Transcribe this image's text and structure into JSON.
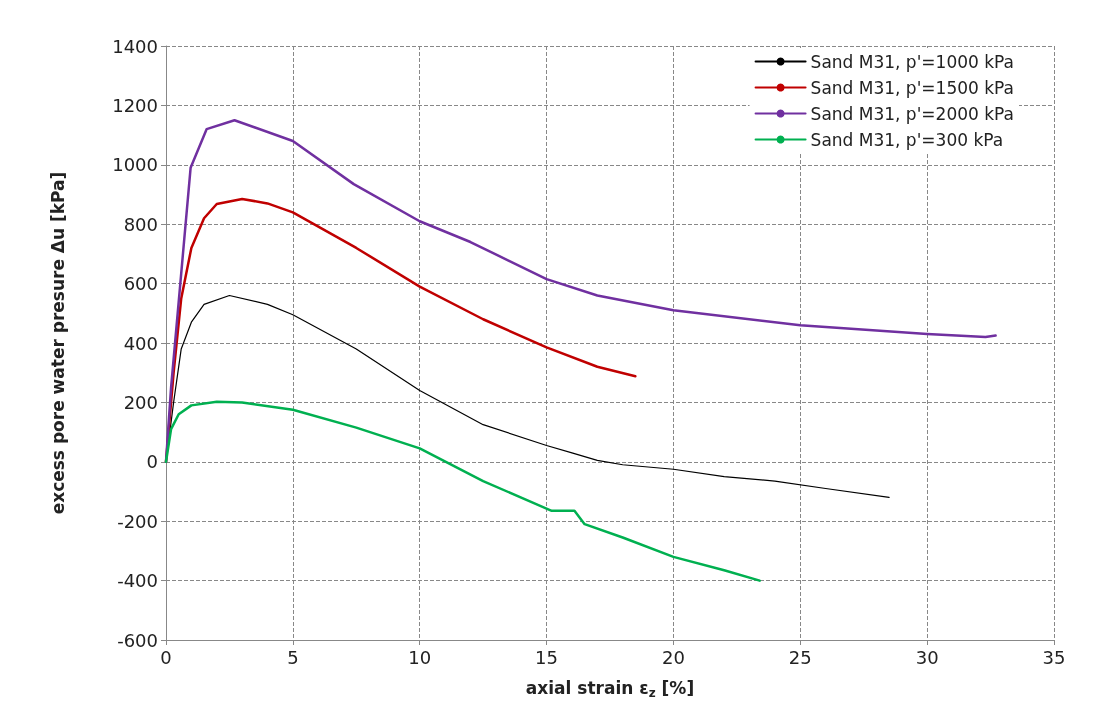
{
  "chart_data": {
    "type": "line",
    "xlabel": "axial strain ε$_{z}$ [%]",
    "ylabel": "excess pore water presure Δu [kPa]",
    "xlim": [
      0,
      35
    ],
    "xticks": [
      0,
      5,
      10,
      15,
      20,
      25,
      30,
      35
    ],
    "ylim": [
      -600,
      1400
    ],
    "yticks": [
      -600,
      -400,
      -200,
      0,
      200,
      400,
      600,
      800,
      1000,
      1200,
      1400
    ],
    "grid": true,
    "legend": "top right",
    "marker": "none",
    "line_style": "solid",
    "series": [
      {
        "name": "Sand M31, p'=1000 kPa",
        "color": "#000000",
        "x": [
          0,
          0.3,
          0.6,
          1,
          1.5,
          2.5,
          4,
          5,
          7.5,
          10,
          12.5,
          15,
          16,
          17,
          18,
          20,
          22,
          24,
          26,
          28.5
        ],
        "values": [
          0,
          200,
          380,
          470,
          530,
          560,
          530,
          495,
          380,
          240,
          125,
          55,
          30,
          5,
          -10,
          -25,
          -50,
          -65,
          -90,
          -120
        ]
      },
      {
        "name": "Sand M31, p'=1500 kPa",
        "color": "#c00000",
        "x": [
          0,
          0.3,
          0.6,
          1,
          1.5,
          2,
          3,
          4,
          5,
          7.5,
          10,
          12.5,
          15,
          17,
          18.5
        ],
        "values": [
          0,
          300,
          550,
          720,
          820,
          868,
          885,
          870,
          840,
          720,
          590,
          480,
          385,
          320,
          288
        ]
      },
      {
        "name": "Sand M31, p'=2000 kPa",
        "color": "#7030a0",
        "x": [
          0,
          0.2,
          0.46,
          0.97,
          1.6,
          2.7,
          5,
          7.4,
          10,
          12,
          15,
          17,
          20,
          25,
          30,
          32.3,
          32.7
        ],
        "values": [
          0,
          250,
          500,
          990,
          1120,
          1150,
          1080,
          935,
          810,
          740,
          615,
          560,
          510,
          460,
          430,
          420,
          425
        ]
      },
      {
        "name": "Sand M31, p'=300 kPa",
        "color": "#00b050",
        "x": [
          0,
          0.2,
          0.5,
          1,
          2,
          3,
          5,
          7.5,
          10,
          12.5,
          15.2,
          16.1,
          16.5,
          18,
          20,
          22,
          23.4
        ],
        "values": [
          0,
          110,
          160,
          190,
          202,
          200,
          175,
          115,
          45,
          -65,
          -165,
          -165,
          -210,
          -255,
          -320,
          -365,
          -400
        ]
      }
    ]
  }
}
